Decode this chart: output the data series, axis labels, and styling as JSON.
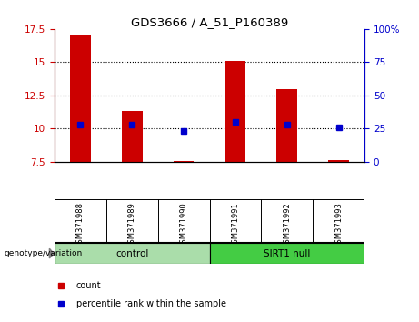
{
  "title": "GDS3666 / A_51_P160389",
  "categories": [
    "GSM371988",
    "GSM371989",
    "GSM371990",
    "GSM371991",
    "GSM371992",
    "GSM371993"
  ],
  "bar_values": [
    17.0,
    11.3,
    7.57,
    15.1,
    13.0,
    7.62
  ],
  "bar_bottom": 7.5,
  "percentile_values": [
    10.3,
    10.3,
    9.8,
    10.5,
    10.3,
    10.1
  ],
  "bar_color": "#cc0000",
  "percentile_color": "#0000cc",
  "ylim_left": [
    7.5,
    17.5
  ],
  "ylim_right": [
    0,
    100
  ],
  "yticks_left": [
    7.5,
    10.0,
    12.5,
    15.0,
    17.5
  ],
  "yticks_right": [
    0,
    25,
    50,
    75,
    100
  ],
  "ytick_labels_left": [
    "7.5",
    "10",
    "12.5",
    "15",
    "17.5"
  ],
  "ytick_labels_right": [
    "0",
    "25",
    "50",
    "75",
    "100%"
  ],
  "left_tick_color": "#cc0000",
  "right_tick_color": "#0000cc",
  "grid_values": [
    10.0,
    12.5,
    15.0
  ],
  "groups": [
    {
      "label": "control",
      "indices": [
        0,
        1,
        2
      ],
      "color": "#aaddaa"
    },
    {
      "label": "SIRT1 null",
      "indices": [
        3,
        4,
        5
      ],
      "color": "#44cc44"
    }
  ],
  "group_label": "genotype/variation",
  "legend_items": [
    {
      "label": "count",
      "color": "#cc0000"
    },
    {
      "label": "percentile rank within the sample",
      "color": "#0000cc"
    }
  ],
  "bg_color": "#ffffff",
  "tick_label_area_color": "#cccccc",
  "bar_width": 0.4
}
